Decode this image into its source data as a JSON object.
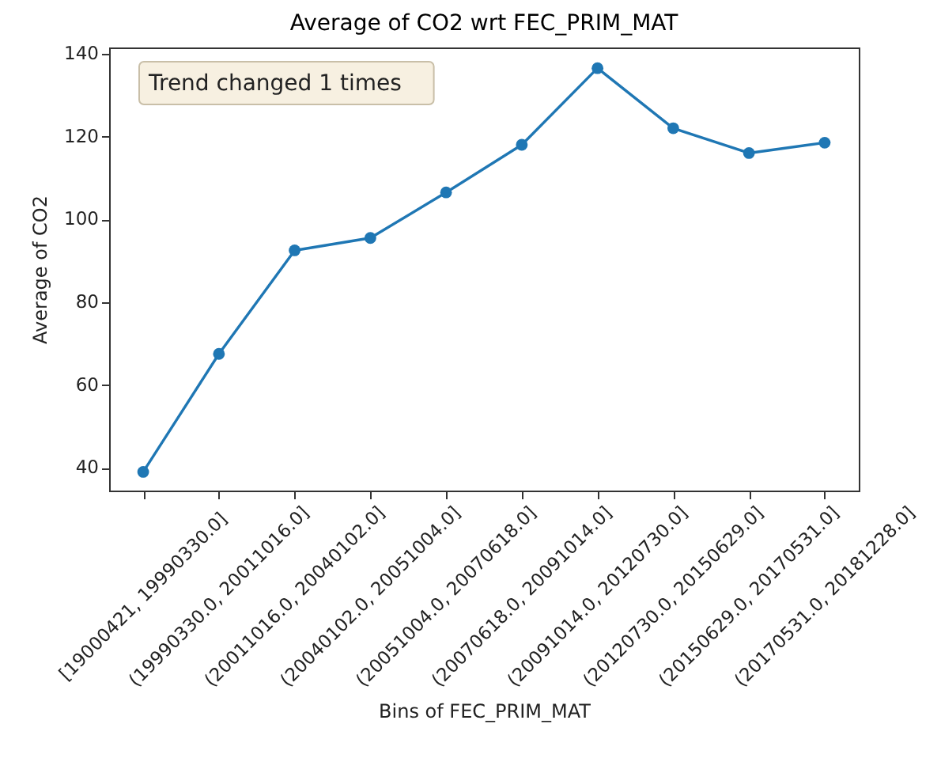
{
  "chart_data": {
    "type": "line",
    "title": "Average of CO2 wrt FEC_PRIM_MAT",
    "xlabel": "Bins of FEC_PRIM_MAT",
    "ylabel": "Average of CO2",
    "categories": [
      "[19000421, 19990330.0]",
      "(19990330.0, 20011016.0]",
      "(20011016.0, 20040102.0]",
      "(20040102.0, 20051004.0]",
      "(20051004.0, 20070618.0]",
      "(20070618.0, 20091014.0]",
      "(20091014.0, 20120730.0]",
      "(20120730.0, 20150629.0]",
      "(20150629.0, 20170531.0]",
      "(20170531.0, 20181228.0]"
    ],
    "series": [
      {
        "color": "#1f77b4",
        "values": [
          39,
          67.5,
          92.5,
          95.5,
          106.5,
          118,
          136.5,
          122,
          116,
          118.5
        ]
      }
    ],
    "ylim": [
      34.5,
      141.5
    ],
    "yticks": [
      40,
      60,
      80,
      100,
      120,
      140
    ],
    "grid": false,
    "marker": "circle",
    "annotations": [
      "Trend changed 1 times"
    ]
  }
}
